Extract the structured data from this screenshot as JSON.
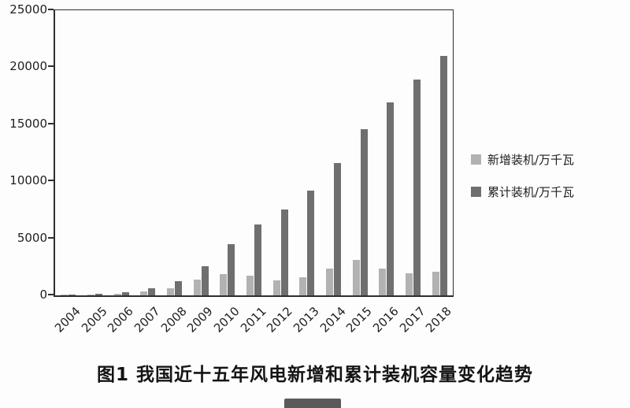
{
  "figure": {
    "caption": "图1  我国近十五年风电新增和累计装机容量变化趋势"
  },
  "chart_data": {
    "type": "bar",
    "title": "",
    "xlabel": "",
    "ylabel": "",
    "categories": [
      "2004",
      "2005",
      "2006",
      "2007",
      "2008",
      "2009",
      "2010",
      "2011",
      "2012",
      "2013",
      "2014",
      "2015",
      "2016",
      "2017",
      "2018"
    ],
    "series": [
      {
        "name": "新增装机/万千瓦",
        "color": "#b2b2b2",
        "values": [
          20,
          50,
          130,
          330,
          620,
          1380,
          1890,
          1760,
          1300,
          1610,
          2330,
          3080,
          2340,
          1950,
          2100
        ]
      },
      {
        "name": "累计装机/万千瓦",
        "color": "#6f6f6f",
        "values": [
          80,
          130,
          260,
          590,
          1220,
          2580,
          4500,
          6240,
          7530,
          9200,
          11600,
          14540,
          16900,
          18900,
          21000
        ]
      }
    ],
    "ylim": [
      0,
      25000
    ],
    "yticks": [
      0,
      5000,
      10000,
      15000,
      20000,
      25000
    ],
    "grid": false,
    "legend_position": "right",
    "axis_color": "#2e2e2e"
  }
}
